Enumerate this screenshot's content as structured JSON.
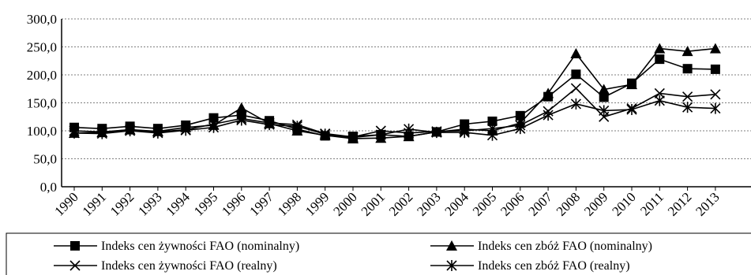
{
  "chart_data": {
    "type": "line",
    "title": "",
    "xlabel": "",
    "ylabel": "",
    "x": [
      "1990",
      "1991",
      "1992",
      "1993",
      "1994",
      "1995",
      "1996",
      "1997",
      "1998",
      "1999",
      "2000",
      "2001",
      "2002",
      "2003",
      "2004",
      "2005",
      "2006",
      "2007",
      "2008",
      "2009",
      "2010",
      "2011",
      "2012",
      "2013"
    ],
    "ylim": [
      0,
      300
    ],
    "yticks": [
      "0,0",
      "50,0",
      "100,0",
      "150,0",
      "200,0",
      "250,0",
      "300,0"
    ],
    "ytick_values": [
      0,
      50,
      100,
      150,
      200,
      250,
      300
    ],
    "grid": "horizontal dashed",
    "legend_position": "bottom",
    "series": [
      {
        "name": "Indeks cen żywności FAO (nominalny)",
        "marker": "square",
        "values": [
          106,
          104,
          108,
          104,
          110,
          123,
          128,
          118,
          103,
          91,
          90,
          93,
          90,
          98,
          112,
          117,
          127,
          161,
          201,
          160,
          185,
          228,
          211,
          210
        ]
      },
      {
        "name": "Indeks cen zbóż FAO (nominalny)",
        "marker": "triangle",
        "values": [
          96,
          97,
          102,
          99,
          106,
          110,
          141,
          113,
          100,
          92,
          86,
          87,
          90,
          98,
          103,
          100,
          114,
          167,
          238,
          174,
          183,
          247,
          242,
          247
        ]
      },
      {
        "name": "Indeks cen żywności FAO (realny)",
        "marker": "x",
        "values": [
          100,
          98,
          102,
          98,
          102,
          112,
          122,
          114,
          111,
          95,
          89,
          100,
          96,
          99,
          100,
          104,
          110,
          135,
          176,
          125,
          140,
          167,
          161,
          165
        ]
      },
      {
        "name": "Indeks cen zbóż FAO (realny)",
        "marker": "star",
        "values": [
          96,
          95,
          100,
          96,
          101,
          106,
          119,
          111,
          108,
          94,
          88,
          93,
          103,
          97,
          97,
          92,
          104,
          128,
          148,
          136,
          138,
          154,
          142,
          140
        ]
      }
    ]
  }
}
